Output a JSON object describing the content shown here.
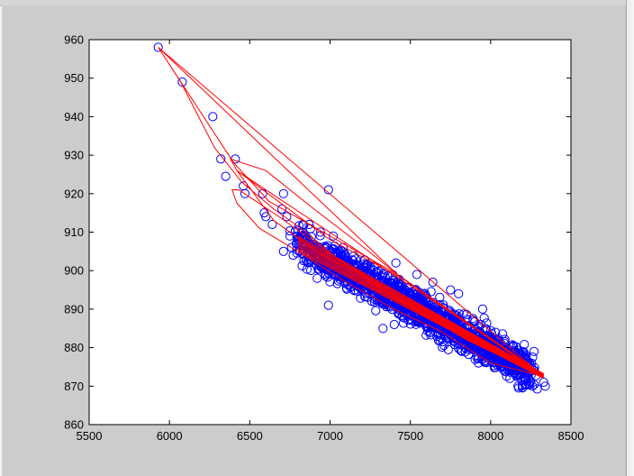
{
  "chart_data": {
    "type": "scatter",
    "title": "",
    "xlabel": "",
    "ylabel": "",
    "xlim": [
      5500,
      8500
    ],
    "ylim": [
      860,
      960
    ],
    "x_ticks": [
      5500,
      6000,
      6500,
      7000,
      7500,
      8000,
      8500
    ],
    "y_ticks": [
      860,
      870,
      880,
      890,
      900,
      910,
      920,
      930,
      940,
      950,
      960
    ],
    "grid": false,
    "legend": "none",
    "colors": {
      "markers": "#0000ff",
      "line": "#ff0000",
      "axes_bg": "#ffffff",
      "figure_bg": "#cccccc"
    },
    "series": [
      {
        "kind": "scatter",
        "marker": "circle-open",
        "outliers": [
          [
            5930,
            958
          ],
          [
            6080,
            949
          ],
          [
            6270,
            940
          ],
          [
            6320,
            929
          ],
          [
            6350,
            924.5
          ],
          [
            6410,
            929
          ],
          [
            6460,
            922
          ],
          [
            6470,
            920
          ],
          [
            6580,
            920
          ],
          [
            6590,
            915
          ],
          [
            6600,
            914
          ],
          [
            6710,
            920
          ],
          [
            6700,
            916
          ],
          [
            6730,
            914
          ],
          [
            6990,
            921
          ],
          [
            6640,
            912
          ],
          [
            6710,
            905
          ],
          [
            6750,
            909
          ],
          [
            6800,
            908
          ],
          [
            6830,
            912
          ],
          [
            6870,
            912
          ],
          [
            6940,
            910
          ],
          [
            6920,
            898
          ],
          [
            6990,
            891
          ],
          [
            7410,
            902
          ],
          [
            7540,
            899
          ],
          [
            7640,
            897
          ],
          [
            7750,
            895
          ],
          [
            7800,
            894
          ],
          [
            7950,
            890
          ],
          [
            7760,
            885
          ],
          [
            7900,
            880
          ],
          [
            7330,
            885
          ],
          [
            7400,
            886
          ],
          [
            8120,
            872
          ],
          [
            8200,
            874
          ],
          [
            8270,
            879
          ],
          [
            8330,
            871
          ],
          [
            8260,
            870
          ],
          [
            8170,
            870
          ],
          [
            8340,
            870
          ],
          [
            8220,
            878
          ],
          [
            7020,
            904
          ],
          [
            7080,
            906
          ],
          [
            7160,
            903
          ],
          [
            6760,
            906
          ],
          [
            6770,
            904
          ],
          [
            6870,
            906
          ]
        ],
        "cloud": {
          "x_from": 6800,
          "x_to": 8250,
          "y_at_x_from": 907,
          "y_at_x_to": 874,
          "spread": 4.5,
          "points": 1500
        }
      },
      {
        "kind": "line",
        "hull": [
          [
            5930,
            958
          ],
          [
            8330,
            872.5
          ],
          [
            7450,
            898
          ],
          [
            7000,
            908
          ],
          [
            6420,
            926
          ],
          [
            8330,
            873
          ],
          [
            7420,
            899
          ],
          [
            5930,
            958
          ]
        ],
        "path": [
          [
            5930,
            958
          ],
          [
            6070,
            949
          ],
          [
            6280,
            932
          ],
          [
            6450,
            923
          ],
          [
            6650,
            916
          ],
          [
            6850,
            910
          ],
          [
            7050,
            903
          ],
          [
            7250,
            897.5
          ],
          [
            7450,
            892
          ],
          [
            7650,
            887
          ],
          [
            7850,
            882
          ],
          [
            8050,
            878
          ],
          [
            8330,
            872.5
          ],
          [
            8000,
            876
          ],
          [
            7700,
            884
          ],
          [
            7400,
            890
          ],
          [
            7100,
            897
          ],
          [
            6800,
            905
          ],
          [
            6560,
            911
          ],
          [
            6420,
            917.5
          ],
          [
            6390,
            921
          ],
          [
            6430,
            921
          ],
          [
            6540,
            918
          ],
          [
            6700,
            913.5
          ],
          [
            6900,
            907.5
          ],
          [
            7100,
            901.5
          ],
          [
            7300,
            896
          ],
          [
            7500,
            891
          ],
          [
            7700,
            886
          ],
          [
            7900,
            881
          ],
          [
            8100,
            877
          ],
          [
            8330,
            873
          ],
          [
            7850,
            883
          ],
          [
            7550,
            890
          ],
          [
            7250,
            897
          ],
          [
            6950,
            904
          ],
          [
            6650,
            913
          ],
          [
            6420,
            926
          ],
          [
            6380,
            929
          ],
          [
            6600,
            926
          ],
          [
            6900,
            916
          ],
          [
            7150,
            908
          ],
          [
            7420,
            899
          ],
          [
            6620,
            918
          ],
          [
            6400,
            928
          ],
          [
            5930,
            958
          ]
        ]
      }
    ]
  }
}
